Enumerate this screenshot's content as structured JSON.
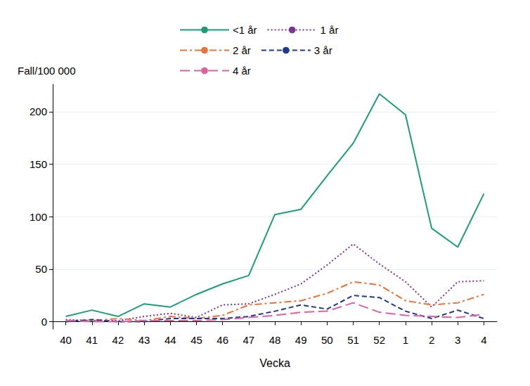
{
  "chart_data": {
    "type": "line",
    "x_label": "Vecka",
    "y_label": "Fall/100 000",
    "categories": [
      "40",
      "41",
      "42",
      "43",
      "44",
      "45",
      "46",
      "47",
      "48",
      "49",
      "50",
      "51",
      "52",
      "1",
      "2",
      "3",
      "4"
    ],
    "series": [
      {
        "name": "<1 år",
        "color": "#1b9e77",
        "line_style": "solid",
        "values": [
          5,
          11,
          5,
          17,
          14,
          26,
          36,
          44,
          102,
          107,
          139,
          170,
          217,
          197,
          89,
          71,
          122
        ]
      },
      {
        "name": "1 år",
        "color": "#7b3294",
        "line_style": "dotted",
        "values": [
          2,
          1,
          1,
          5,
          8,
          4,
          16,
          17,
          26,
          36,
          54,
          74,
          55,
          38,
          14,
          38,
          39
        ]
      },
      {
        "name": "2 år",
        "color": "#e8743b",
        "line_style": "dashdot",
        "values": [
          1,
          1,
          3,
          1,
          5,
          3,
          6,
          16,
          18,
          20,
          27,
          38,
          35,
          20,
          16,
          18,
          26
        ]
      },
      {
        "name": "3 år",
        "color": "#1f3a8a",
        "line_style": "dashed",
        "values": [
          0,
          2,
          0,
          0,
          3,
          3,
          3,
          5,
          10,
          16,
          12,
          25,
          23,
          10,
          3,
          11,
          3
        ]
      },
      {
        "name": "4 år",
        "color": "#e0609f",
        "line_style": "longdash",
        "values": [
          1,
          0,
          0,
          1,
          1,
          1,
          2,
          4,
          6,
          9,
          10,
          18,
          9,
          6,
          5,
          4,
          7
        ]
      }
    ],
    "ylim": [
      -7,
      226
    ],
    "yticks": [
      0,
      50,
      100,
      150,
      200
    ],
    "grid": true,
    "legend": "top"
  }
}
